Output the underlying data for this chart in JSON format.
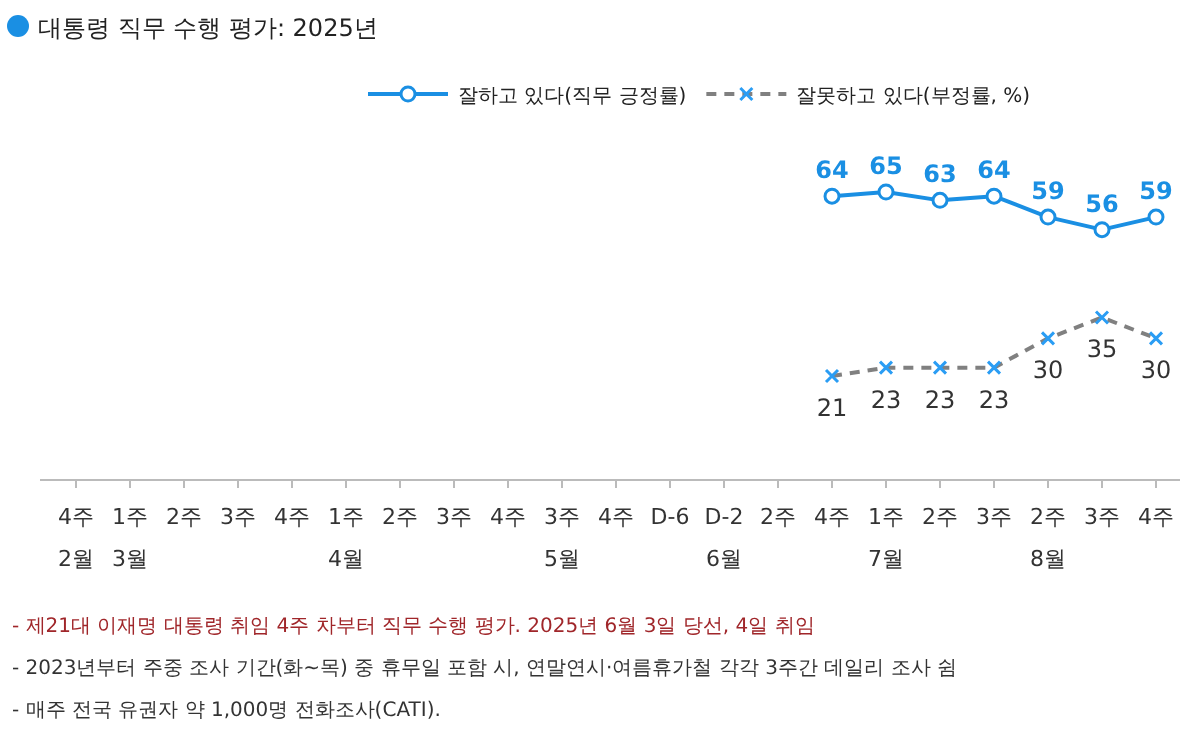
{
  "chart_data": {
    "type": "line",
    "title": "대통령 직무 수행 평가: 2025년",
    "categories": [
      "4주\n2월",
      "1주\n3월",
      "2주",
      "3주",
      "4주",
      "1주\n4월",
      "2주",
      "3주",
      "4주",
      "3주\n5월",
      "4주",
      "D-6",
      "D-2\n6월",
      "2주",
      "4주",
      "1주\n7월",
      "2주",
      "3주",
      "2주\n8월",
      "3주",
      "4주"
    ],
    "series": [
      {
        "name": "잘하고 있다(직무 긍정률)",
        "color": "#1a8fe3",
        "marker": "circle",
        "line_style": "solid",
        "values": [
          null,
          null,
          null,
          null,
          null,
          null,
          null,
          null,
          null,
          null,
          null,
          null,
          null,
          null,
          64,
          65,
          63,
          64,
          59,
          56,
          59
        ]
      },
      {
        "name": "잘못하고 있다(부정률, %)",
        "color": "#808080",
        "marker": "cross",
        "line_style": "dashed",
        "values": [
          null,
          null,
          null,
          null,
          null,
          null,
          null,
          null,
          null,
          null,
          null,
          null,
          null,
          null,
          21,
          23,
          23,
          23,
          30,
          35,
          30
        ]
      }
    ],
    "data_labels": true,
    "legend": "top right",
    "annotations": [
      "- 제21대 이재명 대통령 취임 4주 차부터 직무 수행 평가. 2025년 6월 3일 당선, 4일 취임",
      "- 2023년부터 주중 조사 기간(화~목) 중 휴무일 포함 시, 연말연시·여름휴가철 각각 3주간 데일리 조사 쉼",
      "- 매주 전국 유권자 약 1,000명 전화조사(CATI)."
    ]
  }
}
